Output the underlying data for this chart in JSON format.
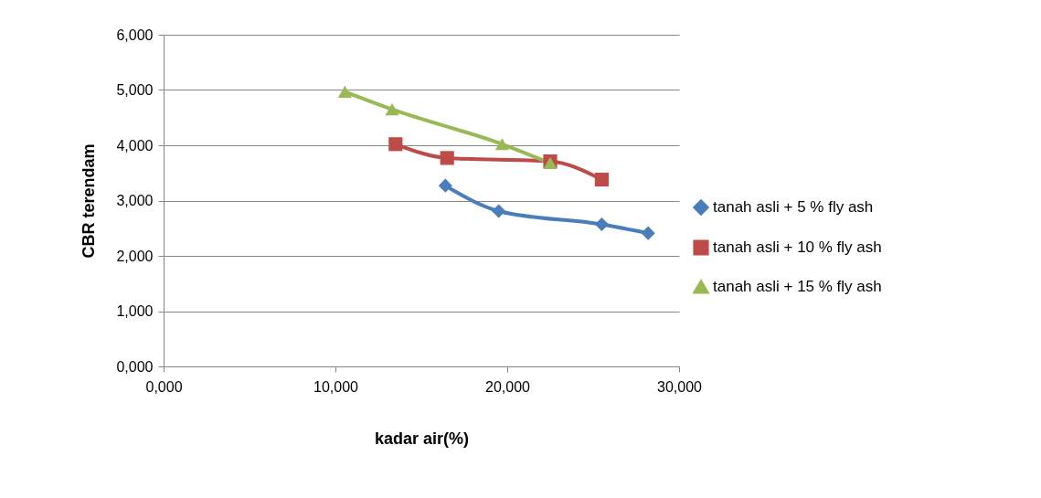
{
  "chart_data": {
    "type": "line",
    "xlabel": "kadar air(%)",
    "ylabel": "CBR terendam",
    "xlim": [
      0,
      30
    ],
    "xticks": [
      {
        "value": 0,
        "label": "0,000"
      },
      {
        "value": 10,
        "label": "10,000"
      },
      {
        "value": 20,
        "label": "20,000"
      },
      {
        "value": 30,
        "label": "30,000"
      }
    ],
    "ylim": [
      0,
      6
    ],
    "yticks": [
      {
        "value": 0,
        "label": "0,000"
      },
      {
        "value": 1,
        "label": "1,000"
      },
      {
        "value": 2,
        "label": "2,000"
      },
      {
        "value": 3,
        "label": "3,000"
      },
      {
        "value": 4,
        "label": "4,000"
      },
      {
        "value": 5,
        "label": "5,000"
      },
      {
        "value": 6,
        "label": "6,000"
      }
    ],
    "grid": "y",
    "legend": "right",
    "series": [
      {
        "name": "tanah asli + 5 % fly ash",
        "color": "#4a7ebb",
        "marker": "diamond",
        "x": [
          16.4,
          19.5,
          25.5,
          28.2
        ],
        "values": [
          3.27,
          2.81,
          2.57,
          2.41
        ]
      },
      {
        "name": "tanah asli + 10 % fly ash",
        "color": "#be4b48",
        "marker": "square",
        "x": [
          13.5,
          16.5,
          22.5,
          25.5
        ],
        "values": [
          4.02,
          3.77,
          3.71,
          3.38
        ]
      },
      {
        "name": "tanah asli + 15 % fly ash",
        "color": "#98b954",
        "marker": "triangle",
        "x": [
          10.55,
          13.3,
          19.7,
          22.5
        ],
        "values": [
          4.97,
          4.65,
          4.02,
          3.68
        ]
      }
    ]
  }
}
